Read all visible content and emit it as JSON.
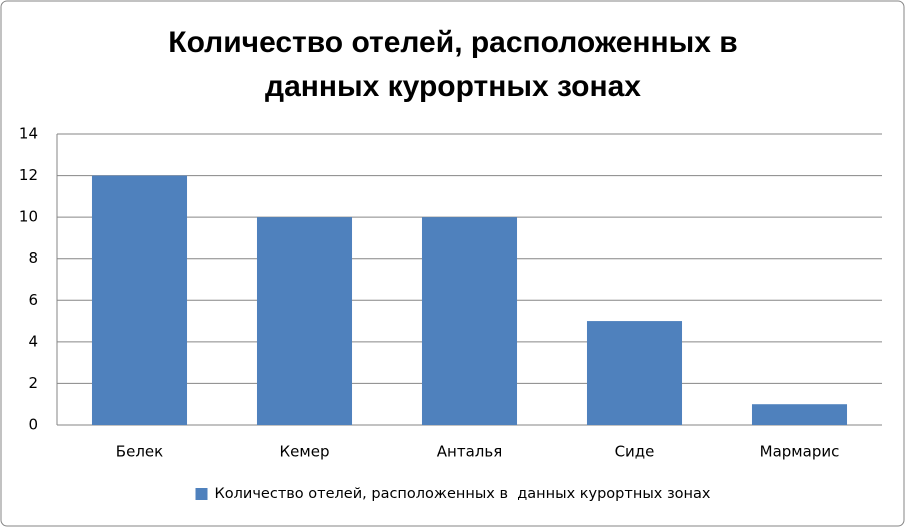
{
  "chart_data": {
    "type": "bar",
    "title": [
      "Количество отелей, расположенных в",
      "данных курортных зонах"
    ],
    "categories": [
      "Белек",
      "Кемер",
      "Анталья",
      "Сиде",
      "Мармарис"
    ],
    "series": [
      {
        "name": "Количество отелей, расположенных в  данных курортных зонах",
        "color": "#4f81bd",
        "values": [
          12,
          10,
          10,
          5,
          1
        ]
      }
    ],
    "ylim": [
      0,
      14
    ],
    "yticks": [
      0,
      2,
      4,
      6,
      8,
      10,
      12,
      14
    ],
    "grid": true,
    "legend": "bottom"
  }
}
